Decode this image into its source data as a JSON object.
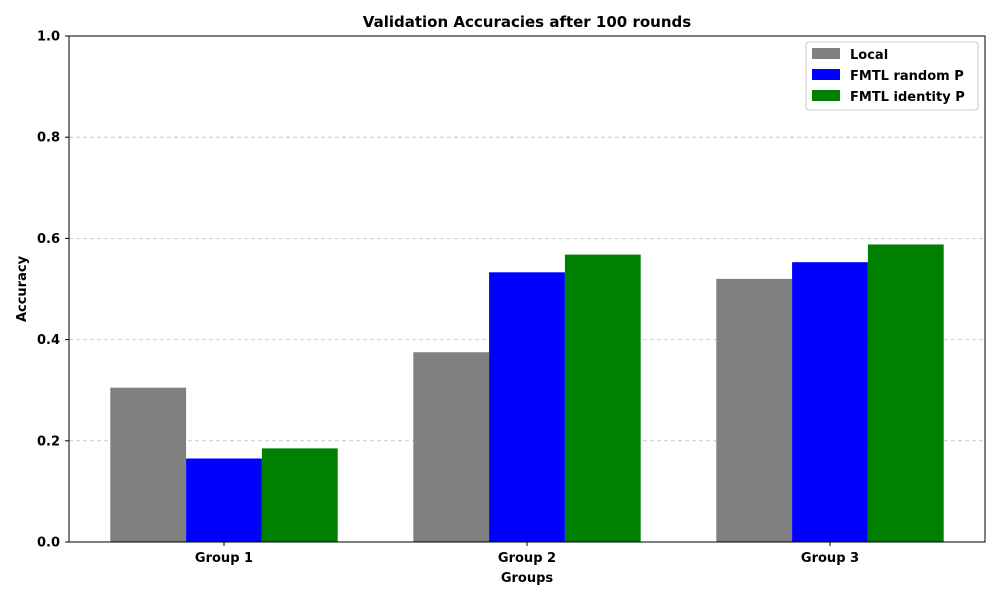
{
  "chart_data": {
    "type": "bar",
    "title": "Validation Accuracies after 100 rounds",
    "xlabel": "Groups",
    "ylabel": "Accuracy",
    "ylim": [
      0,
      1.0
    ],
    "yticks": [
      "0.0",
      "0.2",
      "0.4",
      "0.6",
      "0.8",
      "1.0"
    ],
    "categories": [
      "Group 1",
      "Group 2",
      "Group 3"
    ],
    "series": [
      {
        "name": "Local",
        "color": "#808080",
        "values": [
          0.305,
          0.375,
          0.52
        ]
      },
      {
        "name": "FMTL random P",
        "color": "#0000ff",
        "values": [
          0.165,
          0.533,
          0.553
        ]
      },
      {
        "name": "FMTL identity P",
        "color": "#008000",
        "values": [
          0.185,
          0.568,
          0.588
        ]
      }
    ],
    "grid": "y-dashed",
    "legend_position": "top-right"
  }
}
